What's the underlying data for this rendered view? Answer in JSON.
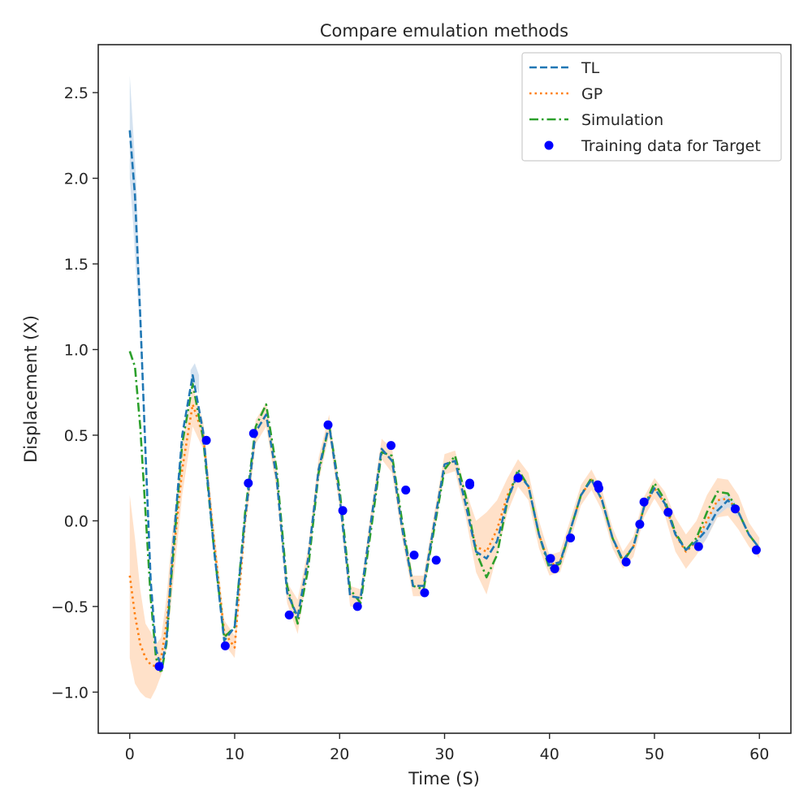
{
  "chart_data": {
    "type": "line",
    "title": "Compare emulation methods",
    "xlabel": "Time (S)",
    "ylabel": "Displacement (X)",
    "xlim": [
      -3,
      63
    ],
    "ylim": [
      -1.24,
      2.78
    ],
    "xticks": [
      0,
      10,
      20,
      30,
      40,
      50,
      60
    ],
    "yticks": [
      -1.0,
      -0.5,
      0.0,
      0.5,
      1.0,
      1.5,
      2.0,
      2.5
    ],
    "ytick_labels": [
      "−1.0",
      "−0.5",
      "0.0",
      "0.5",
      "1.0",
      "1.5",
      "2.0",
      "2.5"
    ],
    "grid": false,
    "legend_position": "top-right",
    "colors": {
      "tl": "#1f77b4",
      "gp": "#ff7f0e",
      "gp_band": "#ffdcc0",
      "tl_band": "#c9dbec",
      "simulation": "#2ca02c",
      "training": "#0000ff"
    },
    "series": [
      {
        "name": "TL",
        "style": "dashed",
        "x": [
          0,
          0.5,
          1,
          1.5,
          2,
          2.5,
          3,
          3.5,
          4,
          5,
          6,
          7,
          8,
          9,
          10,
          11,
          12,
          13,
          14,
          15,
          16,
          17,
          18,
          19,
          20,
          21,
          22,
          23,
          24,
          25,
          26,
          27,
          28,
          29,
          30,
          31,
          32,
          33,
          34,
          35,
          36,
          37,
          38,
          39,
          40,
          41,
          42,
          43,
          44,
          45,
          46,
          47,
          48,
          49,
          50,
          51,
          52,
          53,
          54,
          55,
          56,
          57,
          58,
          59,
          60
        ],
        "y": [
          2.28,
          1.9,
          1.2,
          0.4,
          -0.35,
          -0.75,
          -0.86,
          -0.7,
          -0.25,
          0.5,
          0.85,
          0.52,
          -0.15,
          -0.7,
          -0.62,
          0.02,
          0.52,
          0.62,
          0.25,
          -0.42,
          -0.56,
          -0.22,
          0.3,
          0.56,
          0.14,
          -0.44,
          -0.45,
          0.0,
          0.42,
          0.35,
          -0.06,
          -0.38,
          -0.38,
          -0.02,
          0.33,
          0.35,
          0.1,
          -0.18,
          -0.22,
          -0.12,
          0.12,
          0.28,
          0.2,
          -0.08,
          -0.26,
          -0.24,
          -0.05,
          0.15,
          0.24,
          0.12,
          -0.1,
          -0.23,
          -0.15,
          0.08,
          0.19,
          0.1,
          -0.08,
          -0.17,
          -0.12,
          -0.05,
          0.06,
          0.12,
          0.05,
          -0.08,
          -0.16
        ]
      },
      {
        "name": "GP",
        "style": "dotted",
        "x": [
          0,
          0.5,
          1,
          1.5,
          2,
          2.5,
          3,
          3.5,
          4,
          5,
          6,
          7,
          8,
          9,
          10,
          11,
          12,
          13,
          14,
          15,
          16,
          17,
          18,
          19,
          20,
          21,
          22,
          23,
          24,
          25,
          26,
          27,
          28,
          29,
          30,
          31,
          32,
          33,
          34,
          35,
          36,
          37,
          38,
          39,
          40,
          41,
          42,
          43,
          44,
          45,
          46,
          47,
          48,
          49,
          50,
          51,
          52,
          53,
          54,
          55,
          56,
          57,
          58,
          59,
          60
        ],
        "y": [
          -0.32,
          -0.55,
          -0.72,
          -0.8,
          -0.84,
          -0.85,
          -0.8,
          -0.6,
          -0.3,
          0.3,
          0.68,
          0.5,
          -0.1,
          -0.65,
          -0.74,
          0.0,
          0.52,
          0.62,
          0.25,
          -0.42,
          -0.56,
          -0.22,
          0.3,
          0.56,
          0.14,
          -0.44,
          -0.45,
          0.0,
          0.42,
          0.35,
          -0.06,
          -0.38,
          -0.38,
          -0.02,
          0.33,
          0.35,
          0.1,
          -0.15,
          -0.18,
          -0.05,
          0.15,
          0.28,
          0.2,
          -0.08,
          -0.26,
          -0.24,
          -0.05,
          0.15,
          0.24,
          0.12,
          -0.1,
          -0.23,
          -0.15,
          0.08,
          0.19,
          0.1,
          -0.08,
          -0.18,
          -0.12,
          0.0,
          0.12,
          0.13,
          0.05,
          -0.08,
          -0.16
        ]
      },
      {
        "name": "Simulation",
        "style": "dashdot",
        "x": [
          0,
          0.5,
          1,
          1.5,
          2,
          2.5,
          3,
          3.5,
          4,
          5,
          6,
          7,
          8,
          9,
          10,
          11,
          12,
          13,
          14,
          15,
          16,
          17,
          18,
          19,
          20,
          21,
          22,
          23,
          24,
          25,
          26,
          27,
          28,
          29,
          30,
          31,
          32,
          33,
          34,
          35,
          36,
          37,
          38,
          39,
          40,
          41,
          42,
          43,
          44,
          45,
          46,
          47,
          48,
          49,
          50,
          51,
          52,
          53,
          54,
          55,
          56,
          57,
          58,
          59,
          60
        ],
        "y": [
          0.99,
          0.9,
          0.55,
          0.05,
          -0.45,
          -0.8,
          -0.89,
          -0.72,
          -0.3,
          0.45,
          0.8,
          0.48,
          -0.15,
          -0.68,
          -0.62,
          0.05,
          0.55,
          0.68,
          0.3,
          -0.38,
          -0.6,
          -0.28,
          0.28,
          0.56,
          0.18,
          -0.4,
          -0.48,
          -0.05,
          0.4,
          0.38,
          -0.02,
          -0.38,
          -0.4,
          -0.05,
          0.3,
          0.38,
          0.15,
          -0.18,
          -0.33,
          -0.2,
          0.12,
          0.3,
          0.2,
          -0.08,
          -0.28,
          -0.25,
          -0.05,
          0.15,
          0.25,
          0.12,
          -0.1,
          -0.24,
          -0.15,
          0.08,
          0.22,
          0.12,
          -0.07,
          -0.17,
          -0.1,
          0.05,
          0.17,
          0.16,
          0.05,
          -0.08,
          -0.16
        ]
      }
    ],
    "gp_band": {
      "x": [
        0,
        0.5,
        1,
        1.5,
        2,
        2.5,
        3,
        3.5,
        4,
        5,
        6,
        7,
        8,
        9,
        10,
        11,
        12,
        13,
        14,
        15,
        16,
        17,
        18,
        19,
        20,
        21,
        22,
        23,
        24,
        25,
        26,
        27,
        28,
        29,
        30,
        31,
        32,
        33,
        34,
        35,
        36,
        37,
        38,
        39,
        40,
        41,
        42,
        43,
        44,
        45,
        46,
        47,
        48,
        49,
        50,
        51,
        52,
        53,
        54,
        55,
        56,
        57,
        58,
        59,
        60
      ],
      "lower": [
        -0.8,
        -0.95,
        -1.0,
        -1.03,
        -1.04,
        -0.98,
        -0.9,
        -0.75,
        -0.45,
        0.15,
        0.55,
        0.42,
        -0.18,
        -0.72,
        -0.8,
        -0.06,
        0.45,
        0.55,
        0.18,
        -0.48,
        -0.66,
        -0.28,
        0.23,
        0.5,
        0.08,
        -0.5,
        -0.5,
        -0.06,
        0.36,
        0.28,
        -0.12,
        -0.44,
        -0.44,
        -0.08,
        0.27,
        0.29,
        0.03,
        -0.3,
        -0.43,
        -0.2,
        0.05,
        0.2,
        0.12,
        -0.16,
        -0.32,
        -0.3,
        -0.11,
        0.09,
        0.18,
        0.06,
        -0.16,
        -0.28,
        -0.21,
        0.02,
        0.13,
        0.03,
        -0.18,
        -0.28,
        -0.2,
        -0.1,
        0.02,
        0.03,
        -0.05,
        -0.15,
        -0.22
      ],
      "upper": [
        0.15,
        -0.1,
        -0.4,
        -0.6,
        -0.65,
        -0.72,
        -0.68,
        -0.45,
        -0.1,
        0.45,
        0.78,
        0.58,
        -0.02,
        -0.58,
        -0.67,
        0.06,
        0.59,
        0.69,
        0.32,
        -0.36,
        -0.46,
        -0.16,
        0.37,
        0.62,
        0.2,
        -0.38,
        -0.4,
        0.06,
        0.48,
        0.42,
        0.0,
        -0.32,
        -0.32,
        0.04,
        0.39,
        0.41,
        0.18,
        0.0,
        0.05,
        0.12,
        0.25,
        0.36,
        0.28,
        0.0,
        -0.2,
        -0.18,
        0.01,
        0.21,
        0.3,
        0.18,
        -0.04,
        -0.18,
        -0.09,
        0.14,
        0.25,
        0.17,
        0.02,
        -0.08,
        0.0,
        0.15,
        0.25,
        0.24,
        0.15,
        -0.01,
        -0.1
      ]
    },
    "tl_band": {
      "x": [
        0,
        0.3,
        0.6,
        1,
        1.5,
        2,
        5.8,
        6.2,
        6.6,
        54,
        55,
        56,
        57,
        58
      ],
      "lower": [
        2.0,
        1.75,
        1.45,
        1.1,
        0.35,
        -0.38,
        0.8,
        0.8,
        0.74,
        -0.18,
        -0.1,
        0.03,
        0.08,
        0.02
      ],
      "upper": [
        2.6,
        2.3,
        2.0,
        1.35,
        0.45,
        -0.3,
        0.88,
        0.92,
        0.85,
        -0.12,
        0.0,
        0.12,
        0.16,
        0.08
      ]
    },
    "scatter": {
      "name": "Training data for Target",
      "x": [
        2.8,
        7.3,
        9.1,
        11.3,
        11.8,
        15.2,
        18.9,
        20.3,
        21.7,
        24.9,
        26.3,
        27.1,
        28.1,
        29.2,
        32.4,
        32.4,
        37.0,
        40.1,
        40.5,
        42.0,
        44.6,
        44.7,
        47.3,
        48.6,
        49.0,
        51.3,
        54.2,
        57.7,
        59.7
      ],
      "y": [
        -0.85,
        0.47,
        -0.73,
        0.22,
        0.51,
        -0.55,
        0.56,
        0.06,
        -0.5,
        0.44,
        0.18,
        -0.2,
        -0.42,
        -0.23,
        0.22,
        0.21,
        0.25,
        -0.22,
        -0.28,
        -0.1,
        0.21,
        0.19,
        -0.24,
        -0.02,
        0.11,
        0.05,
        -0.15,
        0.07,
        -0.17
      ]
    }
  }
}
